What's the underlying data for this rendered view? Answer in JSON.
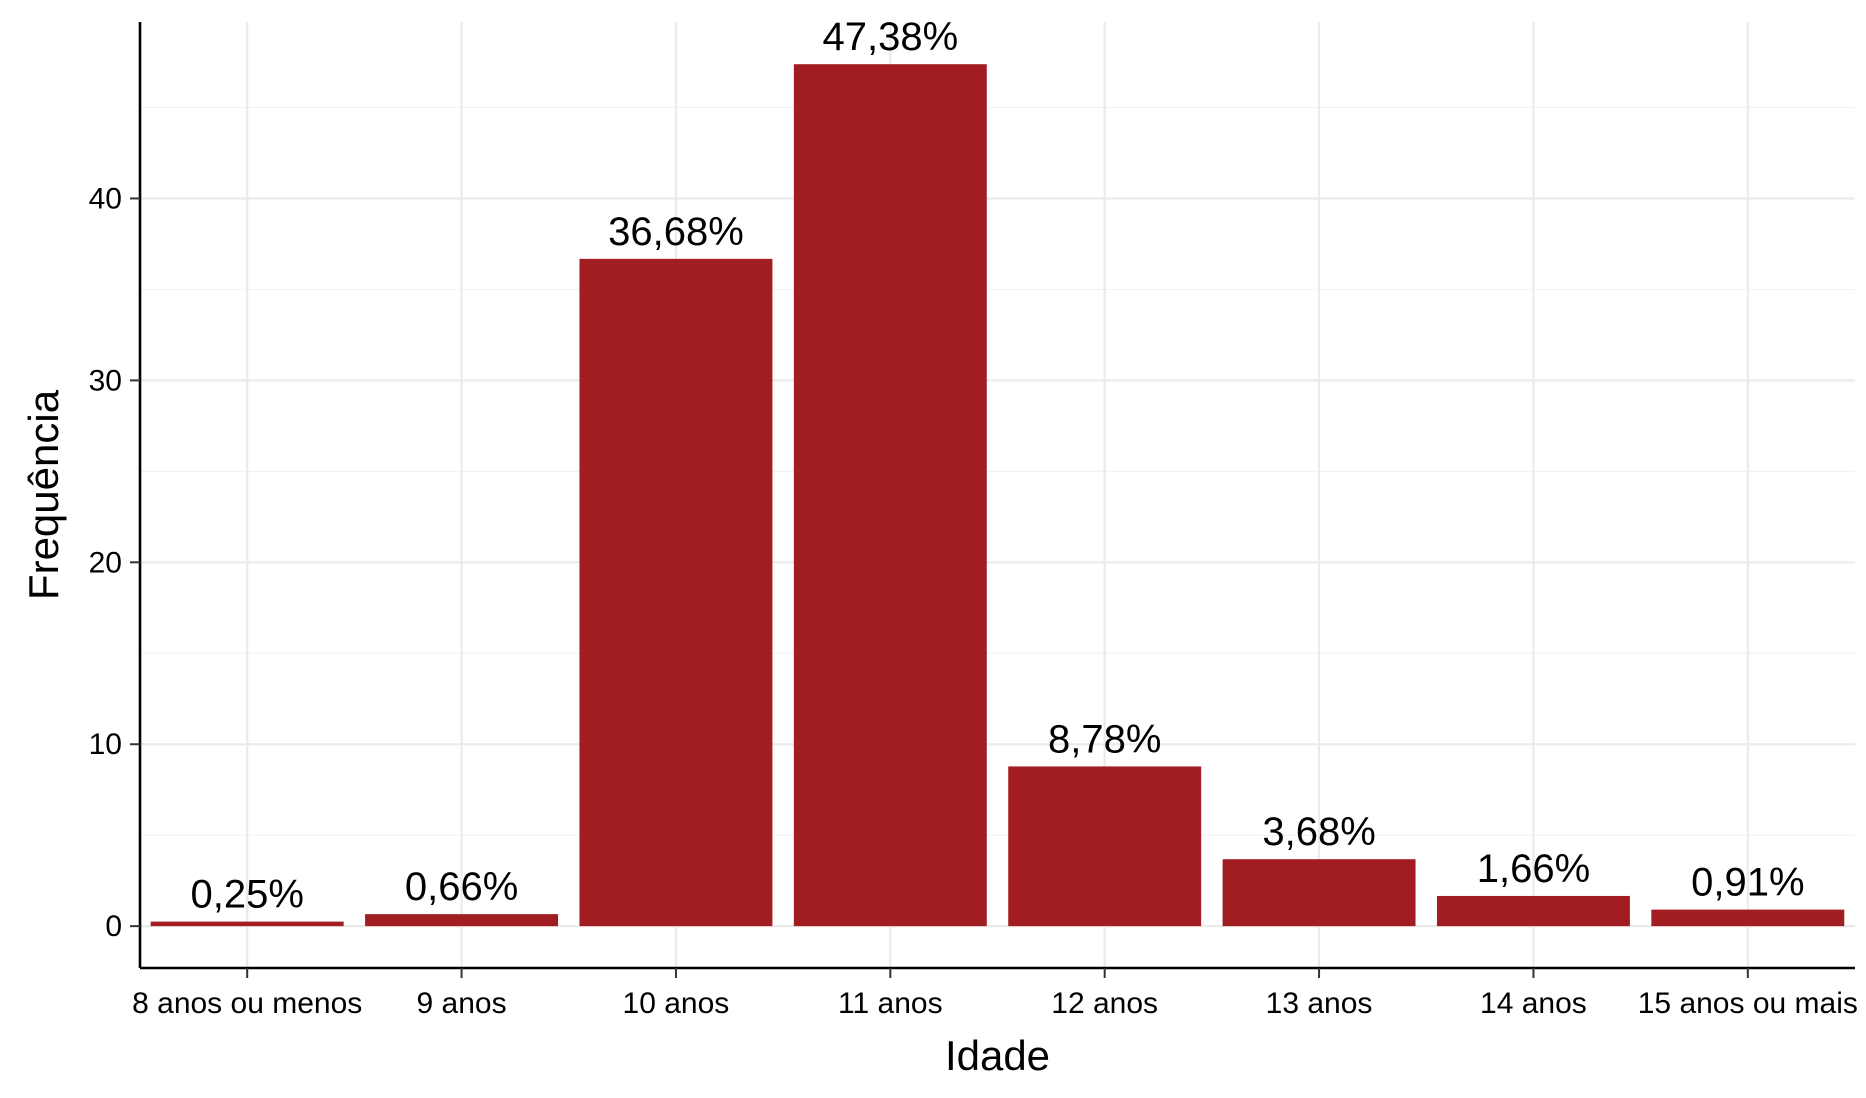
{
  "chart_data": {
    "type": "bar",
    "xlabel": "Idade",
    "ylabel": "Frequência",
    "categories": [
      "8 anos ou menos",
      "9 anos",
      "10 anos",
      "11 anos",
      "12 anos",
      "13 anos",
      "14 anos",
      "15 anos ou mais"
    ],
    "values": [
      0.25,
      0.66,
      36.68,
      47.38,
      8.78,
      3.68,
      1.66,
      0.91
    ],
    "value_labels": [
      "0,25%",
      "0,66%",
      "36,68%",
      "47,38%",
      "8,78%",
      "3,68%",
      "1,66%",
      "0,91%"
    ],
    "ylim": [
      -2.3,
      49.7
    ],
    "yticks": [
      0,
      10,
      20,
      30,
      40
    ],
    "ytick_labels": [
      "0",
      "10",
      "20",
      "30",
      "40"
    ],
    "grid": true,
    "legend": "none",
    "bar_color": "#A11D21"
  }
}
